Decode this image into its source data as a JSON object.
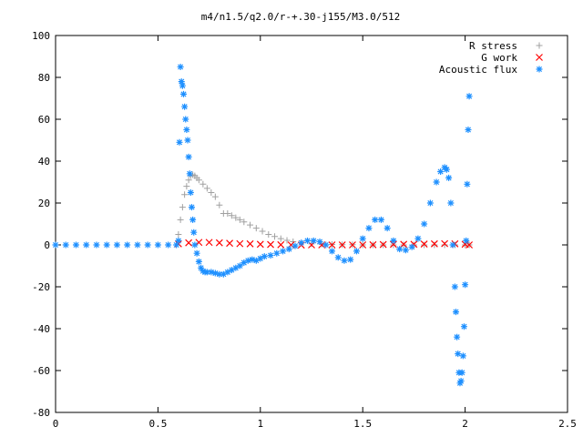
{
  "chart_data": {
    "type": "scatter",
    "title": "m4/n1.5/q2.0/r-+.30-j155/M3.0/512",
    "xlabel": "",
    "ylabel": "",
    "xlim": [
      0,
      2.5
    ],
    "ylim": [
      -80,
      100
    ],
    "x_ticks": [
      0,
      0.5,
      1,
      1.5,
      2,
      2.5
    ],
    "x_tick_labels": [
      "0",
      "0.5",
      "1",
      "1.5",
      "2",
      "2.5"
    ],
    "y_ticks": [
      -80,
      -60,
      -40,
      -20,
      0,
      20,
      40,
      60,
      80,
      100
    ],
    "y_tick_labels": [
      "-80",
      "-60",
      "-40",
      "-20",
      "0",
      "20",
      "40",
      "60",
      "80",
      "100"
    ],
    "grid": false,
    "legend_position": "top-right",
    "series": [
      {
        "name": "R stress",
        "marker": "+",
        "color": "#a0a0a0",
        "x": [
          0.6,
          0.61,
          0.62,
          0.63,
          0.64,
          0.65,
          0.66,
          0.67,
          0.68,
          0.69,
          0.7,
          0.72,
          0.74,
          0.76,
          0.78,
          0.8,
          0.82,
          0.84,
          0.86,
          0.88,
          0.9,
          0.92,
          0.95,
          0.98,
          1.01,
          1.04,
          1.07,
          1.1,
          1.13,
          1.16,
          1.2,
          1.25,
          1.3,
          1.35,
          1.4,
          1.45,
          1.5,
          1.55,
          1.6,
          1.65,
          1.7,
          1.75,
          1.8,
          1.85,
          1.9,
          1.95,
          2.0,
          2.02
        ],
        "y": [
          5,
          12,
          18,
          24,
          28,
          31,
          33,
          33.5,
          33,
          32,
          31,
          29,
          27,
          25,
          23,
          19,
          15,
          15,
          14,
          13,
          12,
          11,
          9.5,
          8,
          6.5,
          5,
          4,
          3,
          2.2,
          1.5,
          1,
          0.5,
          0.3,
          0.2,
          0.1,
          0.1,
          0,
          0,
          0,
          0,
          0,
          0,
          0,
          0,
          0,
          0,
          0,
          0
        ]
      },
      {
        "name": "G work",
        "marker": "x",
        "color": "#ff0000",
        "x": [
          0.6,
          0.65,
          0.7,
          0.75,
          0.8,
          0.85,
          0.9,
          0.95,
          1.0,
          1.05,
          1.1,
          1.15,
          1.2,
          1.25,
          1.3,
          1.35,
          1.4,
          1.45,
          1.5,
          1.55,
          1.6,
          1.65,
          1.7,
          1.75,
          1.8,
          1.85,
          1.9,
          1.95,
          2.0,
          2.02
        ],
        "y": [
          0.5,
          1,
          1.2,
          1.2,
          1,
          0.8,
          0.6,
          0.5,
          0.3,
          0.2,
          0.1,
          0,
          -0.1,
          0,
          0,
          0,
          0,
          0,
          0,
          0.1,
          0.2,
          0.3,
          0.3,
          0.3,
          0.4,
          0.5,
          0.6,
          0.5,
          0.3,
          0
        ]
      },
      {
        "name": "Acoustic flux",
        "marker": "*",
        "color": "#1e90ff",
        "x": [
          0.0,
          0.05,
          0.1,
          0.15,
          0.2,
          0.25,
          0.3,
          0.35,
          0.4,
          0.45,
          0.5,
          0.55,
          0.59,
          0.6,
          0.605,
          0.61,
          0.615,
          0.62,
          0.625,
          0.63,
          0.635,
          0.64,
          0.645,
          0.65,
          0.655,
          0.66,
          0.665,
          0.67,
          0.675,
          0.68,
          0.69,
          0.7,
          0.71,
          0.72,
          0.73,
          0.74,
          0.76,
          0.78,
          0.8,
          0.82,
          0.84,
          0.86,
          0.88,
          0.9,
          0.92,
          0.94,
          0.96,
          0.98,
          1.0,
          1.02,
          1.05,
          1.08,
          1.11,
          1.14,
          1.17,
          1.2,
          1.23,
          1.26,
          1.29,
          1.32,
          1.35,
          1.38,
          1.41,
          1.44,
          1.47,
          1.5,
          1.53,
          1.56,
          1.59,
          1.62,
          1.65,
          1.68,
          1.71,
          1.74,
          1.77,
          1.8,
          1.83,
          1.86,
          1.88,
          1.9,
          1.91,
          1.92,
          1.93,
          1.94,
          1.95,
          1.955,
          1.96,
          1.965,
          1.97,
          1.975,
          1.98,
          1.985,
          1.99,
          1.995,
          2.0,
          2.005,
          2.01,
          2.015,
          2.02
        ],
        "y": [
          0,
          0,
          0,
          0,
          0,
          0,
          0,
          0,
          0,
          0,
          0,
          0,
          0,
          2,
          49,
          85,
          78,
          76,
          72,
          66,
          60,
          55,
          50,
          42,
          34,
          25,
          18,
          12,
          6,
          0,
          -4,
          -8,
          -11,
          -12.5,
          -13,
          -13,
          -13,
          -13.5,
          -14,
          -14,
          -13,
          -12,
          -11,
          -10,
          -8.5,
          -7.5,
          -7,
          -7.5,
          -6.5,
          -5.5,
          -5,
          -4,
          -3,
          -2,
          -0.5,
          1,
          2,
          2,
          1.5,
          0,
          -3,
          -6,
          -7.5,
          -7,
          -3,
          3,
          8,
          12,
          12,
          8,
          2,
          -2,
          -2.5,
          -1,
          3,
          10,
          20,
          30,
          35,
          37,
          36,
          32,
          20,
          0,
          -20,
          -32,
          -44,
          -52,
          -61,
          -66,
          -65,
          -61,
          -53,
          -39,
          -19,
          2,
          29,
          55,
          71
        ]
      }
    ]
  }
}
